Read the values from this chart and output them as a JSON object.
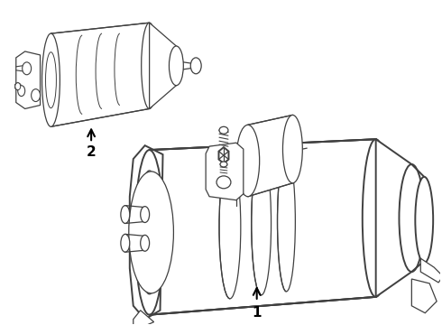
{
  "bg_color": "#ffffff",
  "lc": "#404040",
  "lw_main": 1.4,
  "lw_inner": 0.9,
  "label1": "1",
  "label2": "2",
  "font_size": 11
}
